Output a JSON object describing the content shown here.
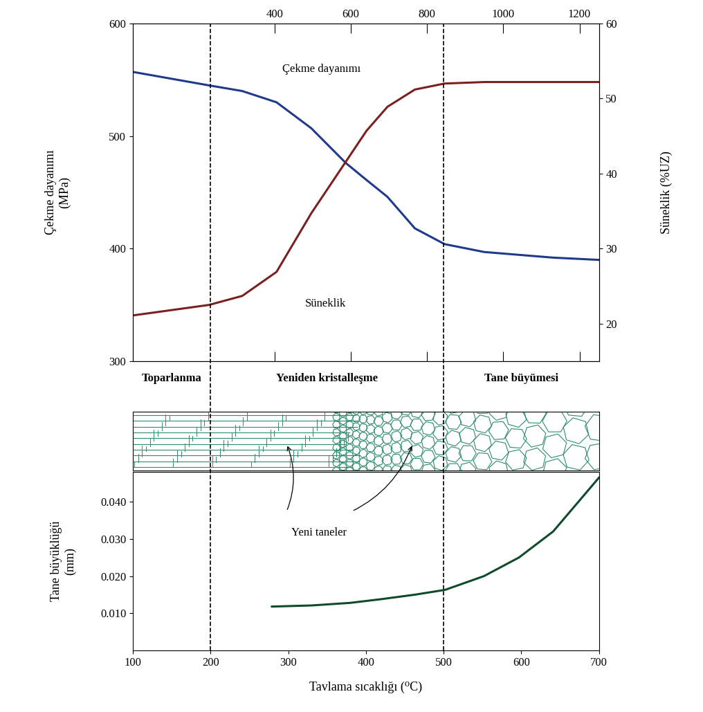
{
  "chart_data": [
    {
      "type": "line",
      "ylabel": "Çekme dayanımı\n(MPa)",
      "y2label": "Süneklik (%UZ)",
      "x": [
        28,
        228,
        315,
        405,
        496,
        587,
        641,
        696,
        768,
        846,
        950,
        1131,
        1251
      ],
      "series": [
        {
          "name": "Çekme dayanımı",
          "color": "#1f3a8a",
          "values": [
            557,
            545,
            540,
            530,
            507,
            476,
            461,
            446,
            418,
            404,
            397,
            392,
            390
          ]
        },
        {
          "name": "Süneklik",
          "color": "#7a2020",
          "axis": "y2",
          "values": [
            21.1,
            22.5,
            23.7,
            26.9,
            34.7,
            41.6,
            45.7,
            48.9,
            51.2,
            52.0,
            52.2,
            52.2,
            52.2
          ]
        }
      ],
      "xlim": [
        28,
        1251
      ],
      "xticks": [
        400,
        600,
        800,
        1000,
        1200
      ],
      "ylim": [
        300,
        600
      ],
      "yticks": [
        300,
        400,
        500,
        600
      ],
      "y2lim": [
        15,
        60
      ],
      "y2ticks": [
        20,
        30,
        40,
        50,
        60
      ]
    },
    {
      "type": "line",
      "xlabel": "Tavlama sıcaklığı (⁰C)",
      "ylabel": "Tane büyüklüğü\n(mm)",
      "x": [
        279,
        330,
        380,
        420,
        463,
        502,
        552,
        597,
        641,
        700
      ],
      "values": [
        0.0118,
        0.0121,
        0.0128,
        0.0138,
        0.015,
        0.0163,
        0.02,
        0.025,
        0.032,
        0.0465
      ],
      "color": "#0f4a2a",
      "xlim": [
        100,
        700
      ],
      "xticks": [
        100,
        200,
        300,
        400,
        500,
        600,
        700
      ],
      "ylim": [
        0.0,
        0.048
      ],
      "yticks": [
        {
          "value": 0.01,
          "label": "0.010"
        },
        {
          "value": 0.02,
          "label": "0.020"
        },
        {
          "value": 0.03,
          "label": "0.030"
        },
        {
          "value": 0.04,
          "label": "0.040"
        }
      ],
      "regions": [
        {
          "label": "Toparlanma",
          "x": [
            100,
            200
          ]
        },
        {
          "label": "Yeniden kristalleşme",
          "x": [
            200,
            500
          ]
        },
        {
          "label": "Tane büyümesi",
          "x": [
            500,
            700
          ]
        }
      ],
      "annotations": [
        "Yeni taneler"
      ]
    }
  ]
}
